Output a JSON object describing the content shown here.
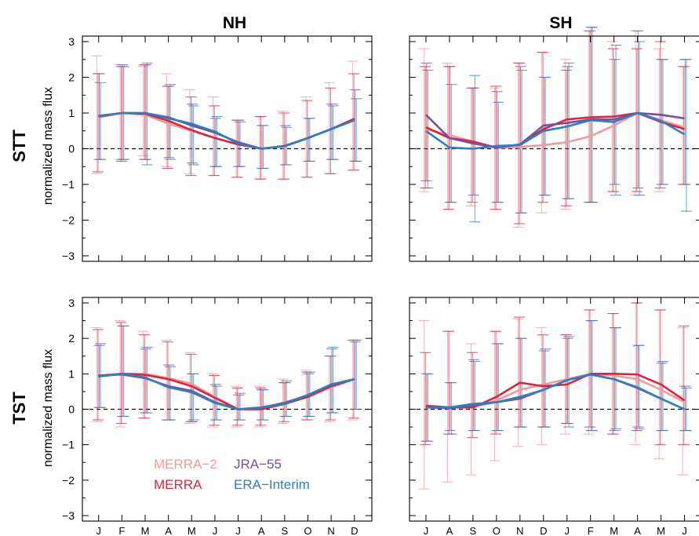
{
  "figure": {
    "col_titles": [
      "NH",
      "SH"
    ],
    "row_titles": [
      "STT",
      "TST"
    ],
    "ylabel": "normalized mass flux",
    "colors": {
      "MERRA-2": "#f09aa0",
      "MERRA": "#d7263d",
      "JRA-55": "#7b4fa0",
      "ERA-Interim": "#2f7fbe"
    },
    "legend": [
      {
        "name": "MERRA−2",
        "key": "MERRA-2"
      },
      {
        "name": "JRA−55",
        "key": "JRA-55"
      },
      {
        "name": "MERRA",
        "key": "MERRA"
      },
      {
        "name": "ERA−Interim",
        "key": "ERA-Interim"
      }
    ]
  },
  "chart_data": [
    {
      "id": "stt-nh",
      "type": "line",
      "row": "STT",
      "col": "NH",
      "categories": [
        "J",
        "F",
        "M",
        "A",
        "M",
        "J",
        "J",
        "A",
        "S",
        "O",
        "N",
        "D"
      ],
      "ylim": [
        -3,
        3
      ],
      "yticks": [
        -3,
        -2,
        -1,
        0,
        1,
        2,
        3
      ],
      "series": [
        {
          "key": "MERRA-2",
          "values": [
            0.88,
            1.0,
            0.95,
            0.7,
            0.5,
            0.3,
            0.12,
            0.0,
            0.08,
            0.3,
            0.55,
            0.82
          ],
          "err_low": [
            -0.7,
            -0.3,
            -0.2,
            -0.5,
            -0.7,
            -0.75,
            -0.8,
            -0.85,
            -0.85,
            -0.8,
            -0.7,
            -0.6
          ],
          "err_high": [
            2.6,
            2.35,
            2.3,
            2.1,
            1.65,
            1.45,
            0.8,
            0.9,
            1.05,
            1.45,
            1.85,
            2.45
          ]
        },
        {
          "key": "MERRA",
          "values": [
            0.9,
            1.0,
            0.98,
            0.78,
            0.52,
            0.3,
            0.12,
            0.0,
            0.08,
            0.3,
            0.55,
            0.84
          ],
          "err_low": [
            -0.65,
            -0.35,
            -0.3,
            -0.55,
            -0.75,
            -0.75,
            -0.8,
            -0.85,
            -0.85,
            -0.8,
            -0.7,
            -0.6
          ],
          "err_high": [
            2.1,
            2.3,
            2.35,
            1.75,
            1.45,
            1.2,
            0.8,
            0.9,
            1.0,
            1.35,
            1.7,
            2.1
          ]
        },
        {
          "key": "JRA-55",
          "values": [
            0.92,
            1.0,
            1.0,
            0.88,
            0.65,
            0.45,
            0.18,
            0.0,
            0.07,
            0.3,
            0.55,
            0.8
          ],
          "err_low": [
            -0.3,
            -0.3,
            -0.3,
            -0.25,
            -0.4,
            -0.5,
            -0.5,
            -0.55,
            -0.45,
            -0.35,
            -0.3,
            -0.35
          ],
          "err_high": [
            2.1,
            2.35,
            2.35,
            1.75,
            1.25,
            0.85,
            0.8,
            0.65,
            0.65,
            0.85,
            1.25,
            1.65
          ]
        },
        {
          "key": "ERA-Interim",
          "values": [
            0.9,
            1.0,
            1.0,
            0.85,
            0.7,
            0.48,
            0.15,
            0.0,
            0.07,
            0.3,
            0.55,
            0.8
          ],
          "err_low": [
            -0.3,
            -0.3,
            -0.45,
            -0.3,
            -0.45,
            -0.5,
            -0.5,
            -0.55,
            -0.45,
            -0.35,
            -0.3,
            -0.35
          ],
          "err_high": [
            1.85,
            2.3,
            2.4,
            1.8,
            1.2,
            0.9,
            0.75,
            0.65,
            0.6,
            0.85,
            1.2,
            1.4
          ]
        }
      ]
    },
    {
      "id": "stt-sh",
      "type": "line",
      "row": "STT",
      "col": "SH",
      "categories": [
        "J",
        "A",
        "S",
        "O",
        "N",
        "D",
        "J",
        "F",
        "M",
        "A",
        "M",
        "J"
      ],
      "ylim": [
        -3,
        3
      ],
      "yticks": [
        -3,
        -2,
        -1,
        0,
        1,
        2,
        3
      ],
      "series": [
        {
          "key": "MERRA-2",
          "values": [
            0.55,
            0.38,
            0.2,
            0.02,
            0.05,
            0.1,
            0.18,
            0.35,
            0.65,
            1.0,
            0.8,
            0.6
          ],
          "err_low": [
            -1.2,
            -1.7,
            -1.6,
            -1.7,
            -2.2,
            -1.8,
            -1.7,
            -1.5,
            -1.2,
            -1.3,
            -1.2,
            -1.0
          ],
          "err_high": [
            2.8,
            2.4,
            1.7,
            1.7,
            2.4,
            2.7,
            2.5,
            3.3,
            3.0,
            3.3,
            2.8,
            2.3
          ]
        },
        {
          "key": "MERRA",
          "values": [
            0.6,
            0.3,
            0.2,
            0.03,
            0.12,
            0.55,
            0.82,
            0.88,
            0.9,
            1.0,
            0.75,
            0.55
          ],
          "err_low": [
            -1.1,
            -1.7,
            -1.5,
            -1.7,
            -2.1,
            -1.5,
            -1.6,
            -1.5,
            -1.2,
            -1.2,
            -1.1,
            -1.0
          ],
          "err_high": [
            2.3,
            2.3,
            1.7,
            1.75,
            2.4,
            2.7,
            2.2,
            3.3,
            2.8,
            2.8,
            3.0,
            2.3
          ]
        },
        {
          "key": "JRA-55",
          "values": [
            0.95,
            0.3,
            0.15,
            0.03,
            0.12,
            0.65,
            0.72,
            0.82,
            0.82,
            1.0,
            0.95,
            0.85
          ],
          "err_low": [
            -0.9,
            -1.5,
            -1.3,
            -1.5,
            -1.8,
            -1.3,
            -1.4,
            -1.5,
            -1.0,
            -1.1,
            -1.0,
            -1.0
          ],
          "err_high": [
            2.4,
            2.3,
            1.7,
            1.6,
            2.3,
            2.0,
            2.3,
            3.4,
            2.5,
            3.3,
            2.5,
            2.5
          ]
        },
        {
          "key": "ERA-Interim",
          "values": [
            0.5,
            0.03,
            0.0,
            0.08,
            0.1,
            0.5,
            0.62,
            0.8,
            0.75,
            1.0,
            0.78,
            0.4
          ],
          "err_low": [
            -1.1,
            -1.5,
            -2.05,
            -1.5,
            -1.8,
            -1.3,
            -1.4,
            -1.5,
            -1.3,
            -1.3,
            -1.0,
            -1.75
          ],
          "err_high": [
            2.2,
            1.8,
            2.05,
            1.3,
            2.2,
            2.0,
            2.4,
            3.4,
            2.9,
            3.0,
            2.5,
            2.5
          ]
        }
      ]
    },
    {
      "id": "tst-nh",
      "type": "line",
      "row": "TST",
      "col": "NH",
      "categories": [
        "J",
        "F",
        "M",
        "A",
        "M",
        "J",
        "J",
        "A",
        "S",
        "O",
        "N",
        "D"
      ],
      "ylim": [
        -3,
        3
      ],
      "yticks": [
        -3,
        -2,
        -1,
        0,
        1,
        2,
        3
      ],
      "series": [
        {
          "key": "MERRA-2",
          "values": [
            0.92,
            1.0,
            1.0,
            0.88,
            0.72,
            0.35,
            0.0,
            0.0,
            0.2,
            0.35,
            0.62,
            0.85
          ],
          "err_low": [
            -0.35,
            -0.5,
            -0.25,
            -0.3,
            -0.4,
            -0.5,
            -0.5,
            -0.5,
            -0.4,
            -0.3,
            -0.35,
            -0.3
          ],
          "err_high": [
            2.3,
            2.5,
            2.2,
            1.95,
            1.6,
            1.0,
            0.65,
            0.65,
            0.85,
            1.1,
            1.5,
            1.95
          ]
        },
        {
          "key": "MERRA",
          "values": [
            0.95,
            1.0,
            0.97,
            0.85,
            0.65,
            0.32,
            0.0,
            0.0,
            0.15,
            0.35,
            0.65,
            0.85
          ],
          "err_low": [
            -0.3,
            -0.4,
            -0.25,
            -0.3,
            -0.35,
            -0.45,
            -0.45,
            -0.45,
            -0.35,
            -0.3,
            -0.3,
            -0.25
          ],
          "err_high": [
            2.25,
            2.45,
            2.1,
            1.9,
            1.55,
            0.95,
            0.6,
            0.6,
            0.75,
            1.05,
            1.5,
            1.95
          ]
        },
        {
          "key": "JRA-55",
          "values": [
            0.95,
            0.98,
            0.88,
            0.65,
            0.52,
            0.2,
            0.0,
            0.05,
            0.18,
            0.4,
            0.7,
            0.85
          ],
          "err_low": [
            0.05,
            -0.2,
            -0.1,
            -0.3,
            -0.35,
            -0.3,
            -0.3,
            -0.3,
            -0.2,
            -0.2,
            -0.1,
            0.0
          ],
          "err_high": [
            1.8,
            2.35,
            1.7,
            1.25,
            1.0,
            0.7,
            0.4,
            0.55,
            0.75,
            1.0,
            1.7,
            1.9
          ]
        },
        {
          "key": "ERA-Interim",
          "values": [
            0.92,
            1.0,
            0.9,
            0.62,
            0.48,
            0.18,
            0.0,
            0.05,
            0.15,
            0.4,
            0.7,
            0.85
          ],
          "err_low": [
            0.05,
            -0.2,
            -0.1,
            -0.3,
            -0.3,
            -0.3,
            -0.3,
            -0.3,
            -0.2,
            -0.2,
            -0.1,
            0.0
          ],
          "err_high": [
            1.85,
            2.35,
            1.75,
            1.2,
            1.0,
            0.65,
            0.45,
            0.55,
            0.8,
            1.05,
            1.75,
            1.95
          ]
        }
      ]
    },
    {
      "id": "tst-sh",
      "type": "line",
      "row": "TST",
      "col": "SH",
      "categories": [
        "J",
        "A",
        "S",
        "O",
        "N",
        "D",
        "J",
        "F",
        "M",
        "A",
        "M",
        "J"
      ],
      "ylim": [
        -3,
        3
      ],
      "yticks": [
        -3,
        -2,
        -1,
        0,
        1,
        2,
        3
      ],
      "series": [
        {
          "key": "MERRA-2",
          "values": [
            0.1,
            0.05,
            0.05,
            0.25,
            0.55,
            0.7,
            0.85,
            1.0,
            0.95,
            0.85,
            0.55,
            0.2
          ],
          "err_low": [
            -2.25,
            -2.05,
            -1.85,
            -1.45,
            -1.05,
            -1.0,
            -0.7,
            -0.7,
            -0.7,
            -1.0,
            -1.4,
            -1.85
          ],
          "err_high": [
            2.5,
            2.2,
            1.85,
            2.2,
            2.55,
            2.3,
            2.1,
            2.8,
            2.7,
            3.0,
            2.8,
            2.3
          ]
        },
        {
          "key": "MERRA",
          "values": [
            0.1,
            0.05,
            0.05,
            0.35,
            0.75,
            0.65,
            0.7,
            1.0,
            1.0,
            0.98,
            0.7,
            0.25
          ],
          "err_low": [
            -1.0,
            -0.7,
            -0.8,
            -0.7,
            -0.5,
            -0.5,
            -0.4,
            -0.5,
            -0.7,
            -0.6,
            -1.0,
            -1.0
          ],
          "err_high": [
            1.6,
            2.2,
            1.6,
            2.2,
            2.6,
            2.1,
            2.1,
            2.8,
            2.7,
            3.0,
            2.8,
            2.35
          ]
        },
        {
          "key": "JRA-55",
          "values": [
            0.05,
            0.03,
            0.1,
            0.2,
            0.3,
            0.55,
            0.82,
            0.98,
            0.85,
            0.6,
            0.3,
            0.0
          ],
          "err_low": [
            -0.9,
            -0.6,
            -0.6,
            -0.6,
            -0.5,
            -0.5,
            -0.4,
            -0.6,
            -0.6,
            -0.5,
            -0.6,
            -0.6
          ],
          "err_high": [
            1.0,
            0.75,
            1.4,
            1.85,
            2.0,
            1.65,
            2.0,
            2.5,
            2.3,
            1.8,
            1.3,
            0.65
          ]
        },
        {
          "key": "ERA-Interim",
          "values": [
            0.05,
            0.05,
            0.15,
            0.2,
            0.35,
            0.55,
            0.82,
            0.98,
            0.85,
            0.62,
            0.3,
            0.0
          ],
          "err_low": [
            -0.9,
            -0.7,
            -0.6,
            -0.6,
            -0.5,
            -0.5,
            -0.5,
            -0.6,
            -0.55,
            -0.55,
            -0.6,
            -0.6
          ],
          "err_high": [
            1.0,
            0.75,
            1.35,
            1.85,
            2.0,
            1.7,
            2.05,
            2.5,
            2.3,
            1.8,
            1.35,
            0.6
          ]
        }
      ]
    }
  ]
}
